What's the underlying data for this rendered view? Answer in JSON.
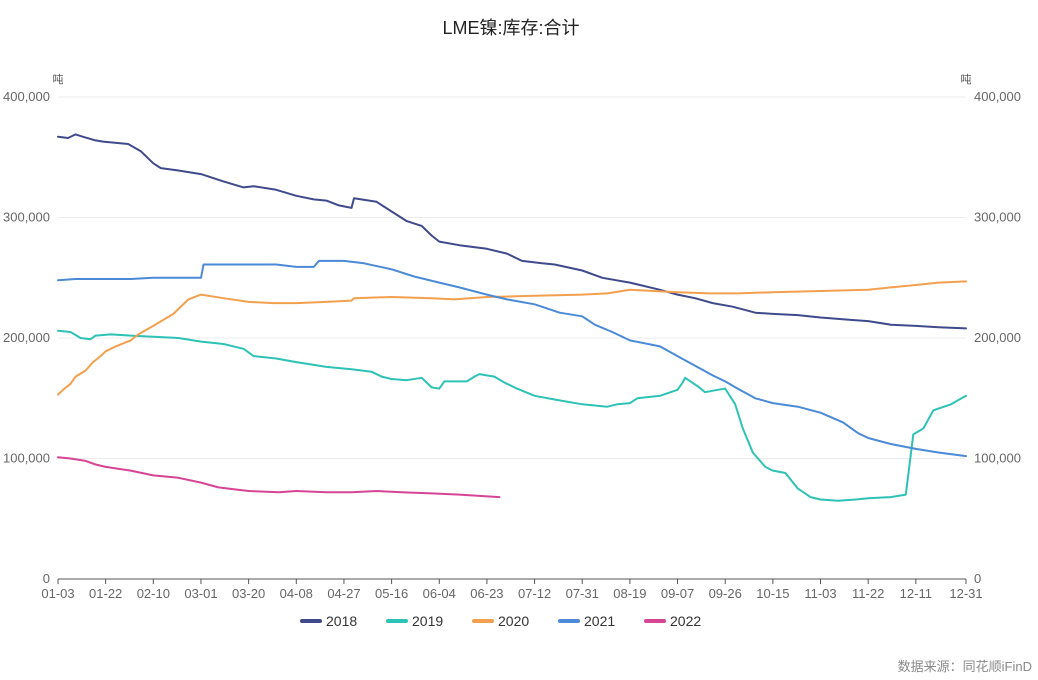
{
  "chart_data": {
    "type": "line",
    "title": "LME镍:库存:合计",
    "ylabel_left": "吨",
    "ylabel_right": "吨",
    "ylim": [
      0,
      400000
    ],
    "yticks": [
      0,
      100000,
      200000,
      300000,
      400000
    ],
    "ytick_labels": [
      "0",
      "100,000",
      "200,000",
      "300,000",
      "400,000"
    ],
    "x_domain": [
      "01-03",
      "12-31"
    ],
    "xticks": [
      "01-03",
      "01-22",
      "02-10",
      "03-01",
      "03-20",
      "04-08",
      "04-27",
      "05-16",
      "06-04",
      "06-23",
      "07-12",
      "07-31",
      "08-19",
      "09-07",
      "09-26",
      "10-15",
      "11-03",
      "11-22",
      "12-11",
      "12-31"
    ],
    "grid": true,
    "legend_position": "bottom",
    "source": "数据来源：同花顺iFinD",
    "series": [
      {
        "name": "2018",
        "color": "#3f4a8c",
        "points": [
          [
            "01-03",
            367000
          ],
          [
            "01-07",
            366000
          ],
          [
            "01-10",
            369000
          ],
          [
            "01-13",
            367000
          ],
          [
            "01-18",
            364000
          ],
          [
            "01-21",
            363000
          ],
          [
            "01-31",
            361000
          ],
          [
            "02-05",
            355000
          ],
          [
            "02-10",
            345000
          ],
          [
            "02-13",
            341000
          ],
          [
            "02-20",
            339000
          ],
          [
            "03-01",
            336000
          ],
          [
            "03-10",
            330000
          ],
          [
            "03-18",
            325000
          ],
          [
            "03-22",
            326000
          ],
          [
            "03-31",
            323000
          ],
          [
            "04-08",
            318000
          ],
          [
            "04-15",
            315000
          ],
          [
            "04-20",
            314000
          ],
          [
            "04-25",
            310000
          ],
          [
            "04-30",
            308000
          ],
          [
            "05-01",
            316000
          ],
          [
            "05-10",
            313000
          ],
          [
            "05-16",
            305000
          ],
          [
            "05-22",
            297000
          ],
          [
            "05-28",
            293000
          ],
          [
            "06-01",
            285000
          ],
          [
            "06-04",
            280000
          ],
          [
            "06-12",
            277000
          ],
          [
            "06-23",
            274000
          ],
          [
            "07-01",
            270000
          ],
          [
            "07-07",
            264000
          ],
          [
            "07-15",
            262000
          ],
          [
            "07-20",
            261000
          ],
          [
            "07-31",
            256000
          ],
          [
            "08-08",
            250000
          ],
          [
            "08-19",
            246000
          ],
          [
            "08-31",
            240000
          ],
          [
            "09-07",
            236000
          ],
          [
            "09-14",
            233000
          ],
          [
            "09-21",
            229000
          ],
          [
            "09-29",
            226000
          ],
          [
            "10-08",
            221000
          ],
          [
            "10-15",
            220000
          ],
          [
            "10-25",
            219000
          ],
          [
            "11-03",
            217000
          ],
          [
            "11-15",
            215000
          ],
          [
            "11-22",
            214000
          ],
          [
            "12-01",
            211000
          ],
          [
            "12-11",
            210000
          ],
          [
            "12-20",
            209000
          ],
          [
            "12-31",
            208000
          ]
        ]
      },
      {
        "name": "2019",
        "color": "#2ec2b6",
        "points": [
          [
            "01-03",
            206000
          ],
          [
            "01-08",
            205000
          ],
          [
            "01-12",
            200000
          ],
          [
            "01-16",
            199000
          ],
          [
            "01-18",
            202000
          ],
          [
            "01-24",
            203000
          ],
          [
            "02-01",
            202000
          ],
          [
            "02-10",
            201000
          ],
          [
            "02-20",
            200000
          ],
          [
            "03-01",
            197000
          ],
          [
            "03-10",
            195000
          ],
          [
            "03-18",
            191000
          ],
          [
            "03-22",
            185000
          ],
          [
            "03-31",
            183000
          ],
          [
            "04-08",
            180000
          ],
          [
            "04-20",
            176000
          ],
          [
            "04-30",
            174000
          ],
          [
            "05-08",
            172000
          ],
          [
            "05-12",
            168000
          ],
          [
            "05-16",
            166000
          ],
          [
            "05-22",
            165000
          ],
          [
            "05-28",
            167000
          ],
          [
            "06-01",
            159000
          ],
          [
            "06-04",
            158000
          ],
          [
            "06-06",
            164000
          ],
          [
            "06-15",
            164000
          ],
          [
            "06-18",
            168000
          ],
          [
            "06-20",
            170000
          ],
          [
            "06-26",
            168000
          ],
          [
            "06-30",
            163000
          ],
          [
            "07-05",
            158000
          ],
          [
            "07-12",
            152000
          ],
          [
            "07-20",
            149000
          ],
          [
            "07-31",
            145000
          ],
          [
            "08-10",
            143000
          ],
          [
            "08-14",
            145000
          ],
          [
            "08-19",
            146000
          ],
          [
            "08-22",
            150000
          ],
          [
            "08-31",
            152000
          ],
          [
            "09-07",
            157000
          ],
          [
            "09-09",
            163000
          ],
          [
            "09-10",
            167000
          ],
          [
            "09-15",
            160000
          ],
          [
            "09-18",
            155000
          ],
          [
            "09-23",
            157000
          ],
          [
            "09-26",
            158000
          ],
          [
            "09-30",
            145000
          ],
          [
            "10-03",
            125000
          ],
          [
            "10-07",
            105000
          ],
          [
            "10-12",
            93000
          ],
          [
            "10-15",
            90000
          ],
          [
            "10-20",
            88000
          ],
          [
            "10-25",
            75000
          ],
          [
            "10-30",
            68000
          ],
          [
            "11-03",
            66000
          ],
          [
            "11-10",
            65000
          ],
          [
            "11-17",
            66000
          ],
          [
            "11-22",
            67000
          ],
          [
            "12-01",
            68000
          ],
          [
            "12-07",
            70000
          ],
          [
            "12-10",
            120000
          ],
          [
            "12-14",
            125000
          ],
          [
            "12-18",
            140000
          ],
          [
            "12-25",
            145000
          ],
          [
            "12-31",
            152000
          ]
        ]
      },
      {
        "name": "2020",
        "color": "#f2a04f",
        "points": [
          [
            "01-03",
            153000
          ],
          [
            "01-05",
            157000
          ],
          [
            "01-08",
            162000
          ],
          [
            "01-10",
            168000
          ],
          [
            "01-14",
            173000
          ],
          [
            "01-17",
            180000
          ],
          [
            "01-20",
            185000
          ],
          [
            "01-22",
            189000
          ],
          [
            "01-26",
            193000
          ],
          [
            "02-01",
            198000
          ],
          [
            "02-04",
            203000
          ],
          [
            "02-10",
            210000
          ],
          [
            "02-18",
            220000
          ],
          [
            "02-24",
            232000
          ],
          [
            "03-01",
            236000
          ],
          [
            "03-10",
            233000
          ],
          [
            "03-20",
            230000
          ],
          [
            "03-30",
            229000
          ],
          [
            "04-08",
            229000
          ],
          [
            "04-20",
            230000
          ],
          [
            "04-30",
            231000
          ],
          [
            "05-01",
            233000
          ],
          [
            "05-16",
            234000
          ],
          [
            "06-01",
            233000
          ],
          [
            "06-10",
            232000
          ],
          [
            "06-23",
            234000
          ],
          [
            "07-12",
            235000
          ],
          [
            "07-31",
            236000
          ],
          [
            "08-10",
            237000
          ],
          [
            "08-19",
            240000
          ],
          [
            "09-07",
            238000
          ],
          [
            "09-20",
            237000
          ],
          [
            "10-01",
            237000
          ],
          [
            "10-15",
            238000
          ],
          [
            "11-03",
            239000
          ],
          [
            "11-22",
            240000
          ],
          [
            "12-01",
            242000
          ],
          [
            "12-11",
            244000
          ],
          [
            "12-20",
            246000
          ],
          [
            "12-31",
            247000
          ]
        ]
      },
      {
        "name": "2021",
        "color": "#4a8ad6",
        "points": [
          [
            "01-03",
            248000
          ],
          [
            "01-10",
            249000
          ],
          [
            "01-22",
            249000
          ],
          [
            "02-01",
            249000
          ],
          [
            "02-10",
            250000
          ],
          [
            "02-20",
            250000
          ],
          [
            "03-01",
            250000
          ],
          [
            "03-02",
            261000
          ],
          [
            "03-10",
            261000
          ],
          [
            "03-20",
            261000
          ],
          [
            "03-31",
            261000
          ],
          [
            "04-08",
            259000
          ],
          [
            "04-15",
            259000
          ],
          [
            "04-17",
            264000
          ],
          [
            "04-27",
            264000
          ],
          [
            "05-05",
            262000
          ],
          [
            "05-16",
            257000
          ],
          [
            "05-25",
            251000
          ],
          [
            "06-04",
            246000
          ],
          [
            "06-12",
            242000
          ],
          [
            "06-23",
            236000
          ],
          [
            "07-01",
            232000
          ],
          [
            "07-12",
            228000
          ],
          [
            "07-22",
            221000
          ],
          [
            "07-31",
            218000
          ],
          [
            "08-05",
            211000
          ],
          [
            "08-12",
            205000
          ],
          [
            "08-19",
            198000
          ],
          [
            "08-31",
            193000
          ],
          [
            "09-07",
            185000
          ],
          [
            "09-14",
            177000
          ],
          [
            "09-21",
            169000
          ],
          [
            "09-26",
            164000
          ],
          [
            "10-01",
            158000
          ],
          [
            "10-08",
            150000
          ],
          [
            "10-15",
            146000
          ],
          [
            "10-25",
            143000
          ],
          [
            "11-03",
            138000
          ],
          [
            "11-12",
            130000
          ],
          [
            "11-18",
            121000
          ],
          [
            "11-22",
            117000
          ],
          [
            "12-01",
            112000
          ],
          [
            "12-11",
            108000
          ],
          [
            "12-20",
            105000
          ],
          [
            "12-31",
            102000
          ]
        ]
      },
      {
        "name": "2022",
        "color": "#d64494",
        "points": [
          [
            "01-03",
            101000
          ],
          [
            "01-08",
            100000
          ],
          [
            "01-14",
            98000
          ],
          [
            "01-18",
            95000
          ],
          [
            "01-22",
            93000
          ],
          [
            "02-01",
            90000
          ],
          [
            "02-10",
            86000
          ],
          [
            "02-20",
            84000
          ],
          [
            "03-01",
            80000
          ],
          [
            "03-08",
            76000
          ],
          [
            "03-12",
            75000
          ],
          [
            "03-20",
            73000
          ],
          [
            "04-01",
            72000
          ],
          [
            "04-08",
            73000
          ],
          [
            "04-20",
            72000
          ],
          [
            "04-30",
            72000
          ],
          [
            "05-10",
            73000
          ],
          [
            "05-20",
            72000
          ],
          [
            "06-01",
            71000
          ],
          [
            "06-12",
            70000
          ],
          [
            "06-20",
            69000
          ],
          [
            "06-28",
            68000
          ]
        ]
      }
    ]
  }
}
